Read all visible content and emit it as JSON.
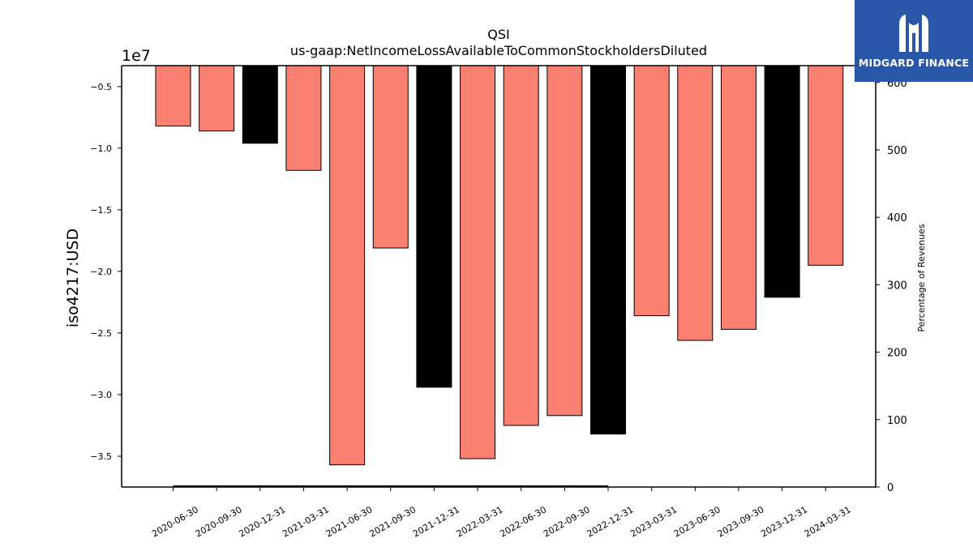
{
  "chart_data": {
    "type": "bar",
    "title": "QSI",
    "subtitle": "us-gaap:NetIncomeLossAvailableToCommonStockholdersDiluted",
    "ylabel": "iso4217:USD",
    "y_offset_label": "1e7",
    "y2label": "Percentage of Revenues",
    "ylim": [
      -37500000,
      -3300000
    ],
    "y2lim": [
      0,
      625
    ],
    "yticks": [
      -0.5,
      -1.0,
      -1.5,
      -2.0,
      -2.5,
      -3.0,
      -3.5
    ],
    "y2ticks": [
      0,
      100,
      200,
      300,
      400,
      500,
      600
    ],
    "categories": [
      "2020-06-30",
      "2020-09-30",
      "2020-12-31",
      "2021-03-31",
      "2021-06-30",
      "2021-09-30",
      "2021-12-31",
      "2022-03-31",
      "2022-06-30",
      "2022-09-30",
      "2022-12-31",
      "2023-03-31",
      "2023-06-30",
      "2023-09-30",
      "2023-12-31",
      "2024-03-31"
    ],
    "values": [
      -8200000,
      -8600000,
      -9600000,
      -11800000,
      -35700000,
      -18100000,
      -29400000,
      -35200000,
      -32500000,
      -31700000,
      -33200000,
      -23600000,
      -25600000,
      -24700000,
      -22100000,
      -19500000
    ],
    "colors": [
      "#fa8072",
      "#fa8072",
      "#000000",
      "#fa8072",
      "#fa8072",
      "#fa8072",
      "#000000",
      "#fa8072",
      "#fa8072",
      "#fa8072",
      "#000000",
      "#fa8072",
      "#fa8072",
      "#fa8072",
      "#000000",
      "#fa8072"
    ],
    "grid": false
  },
  "logo": {
    "text": "MIDGARD FINANCE",
    "color": "#2b57a8"
  }
}
